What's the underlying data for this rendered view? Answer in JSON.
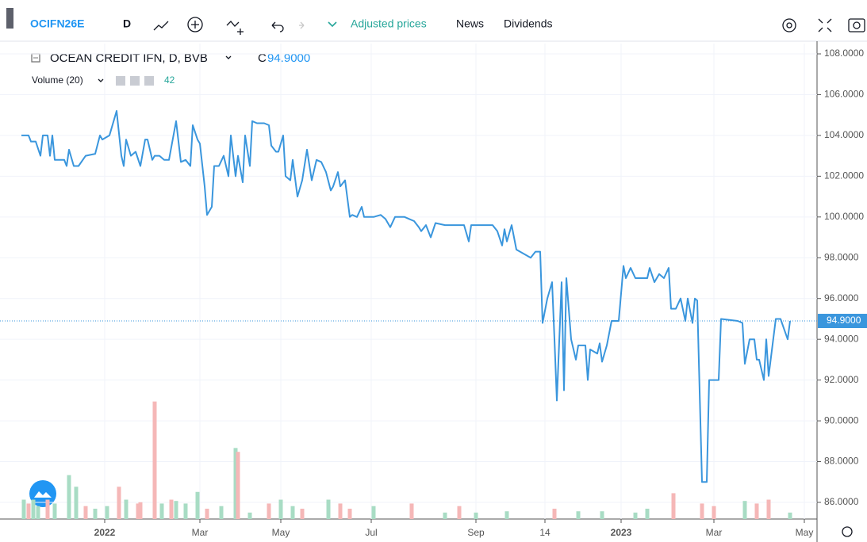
{
  "toolbar": {
    "symbol": "OCIFN26E",
    "interval": "D",
    "adjusted": "Adjusted prices",
    "news": "News",
    "dividends": "Dividends"
  },
  "chart_data": {
    "type": "line",
    "title": "OCEAN CREDIT IFN, D, BVB",
    "close_label": "C",
    "close_value": "94.9000",
    "volume_label": "Volume (20)",
    "volume_value": "42",
    "grid": true,
    "xlim": [
      0,
      334
    ],
    "xticks": [
      {
        "value": 35,
        "label": "2022"
      },
      {
        "value": 75,
        "label": "Mar"
      },
      {
        "value": 109,
        "label": "May"
      },
      {
        "value": 147,
        "label": "Jul"
      },
      {
        "value": 191,
        "label": "Sep"
      },
      {
        "value": 220,
        "label": "14"
      },
      {
        "value": 252,
        "label": "2023"
      },
      {
        "value": 291,
        "label": "Mar"
      },
      {
        "value": 329,
        "label": "May"
      }
    ],
    "ylim": [
      85.2,
      108.0
    ],
    "yticks": [
      {
        "value": 86,
        "label": "86.0000"
      },
      {
        "value": 88,
        "label": "88.0000"
      },
      {
        "value": 90,
        "label": "90.0000"
      },
      {
        "value": 92,
        "label": "92.0000"
      },
      {
        "value": 94,
        "label": "94.0000"
      },
      {
        "value": 96,
        "label": "96.0000"
      },
      {
        "value": 98,
        "label": "98.0000"
      },
      {
        "value": 100,
        "label": "100.0000"
      },
      {
        "value": 102,
        "label": "102.0000"
      },
      {
        "value": 104,
        "label": "104.0000"
      },
      {
        "value": 106,
        "label": "106.0000"
      },
      {
        "value": 108,
        "label": "108.0000"
      }
    ],
    "last_price": {
      "value": 94.9,
      "label": "94.9000"
    },
    "y2lim": [
      0,
      100
    ],
    "series": [
      {
        "name": "OCEAN CREDIT IFN, D, BVB",
        "color": "#3a96dd",
        "x": [
          0,
          3,
          4,
          6,
          8,
          9,
          11,
          12,
          13,
          14,
          18,
          19,
          20,
          22,
          24,
          27,
          31,
          33,
          34,
          37,
          39,
          40,
          42,
          43,
          44,
          46,
          48,
          50,
          52,
          53,
          55,
          56,
          58,
          60,
          62,
          65,
          67,
          69,
          71,
          72,
          74,
          75,
          77,
          78,
          80,
          81,
          83,
          85,
          87,
          88,
          90,
          91,
          93,
          94,
          96,
          97,
          99,
          102,
          104,
          105,
          107,
          108,
          110,
          111,
          113,
          114,
          116,
          118,
          120,
          122,
          124,
          126,
          128,
          130,
          131,
          133,
          134,
          136,
          138,
          139,
          141,
          143,
          144,
          148,
          151,
          153,
          155,
          157,
          161,
          163,
          165,
          167,
          168,
          170,
          172,
          174,
          178,
          181,
          186,
          188,
          189,
          198,
          200,
          202,
          203,
          204,
          206,
          208,
          211,
          214,
          216,
          218,
          219,
          221,
          223,
          224,
          225,
          227,
          228,
          229,
          231,
          233,
          234,
          237,
          238,
          239,
          242,
          243,
          244,
          246,
          248,
          251,
          253,
          254,
          256,
          258,
          263,
          264,
          266,
          268,
          270,
          272,
          273,
          275,
          277,
          279,
          280,
          282,
          283,
          284,
          286,
          288,
          289,
          293,
          294,
          301,
          303,
          304,
          306,
          308,
          309,
          310,
          312,
          313,
          314,
          317,
          319,
          322,
          323
        ],
        "values": [
          104.0,
          104.0,
          103.7,
          103.7,
          103.0,
          104.0,
          104.0,
          103.0,
          104.0,
          102.8,
          102.8,
          102.5,
          103.3,
          102.5,
          102.5,
          103.0,
          103.1,
          104.0,
          103.8,
          104.0,
          104.8,
          105.2,
          103.0,
          102.5,
          103.8,
          103.0,
          103.2,
          102.5,
          103.8,
          103.8,
          102.8,
          103.0,
          103.0,
          102.8,
          102.8,
          104.7,
          102.7,
          102.8,
          102.5,
          104.5,
          103.8,
          103.6,
          101.5,
          100.1,
          100.5,
          102.5,
          102.5,
          103.0,
          102.0,
          104.0,
          102.0,
          103.0,
          101.7,
          104.0,
          102.5,
          104.7,
          104.6,
          104.6,
          104.5,
          103.5,
          103.2,
          103.2,
          104.0,
          102.0,
          101.8,
          102.8,
          101.0,
          101.8,
          103.3,
          101.8,
          102.8,
          102.7,
          102.2,
          101.3,
          101.5,
          102.2,
          101.5,
          101.8,
          100.0,
          100.1,
          100.0,
          100.5,
          100.0,
          100.0,
          100.1,
          99.9,
          99.5,
          100.0,
          100.0,
          99.9,
          99.8,
          99.5,
          99.3,
          99.6,
          99.0,
          99.7,
          99.6,
          99.6,
          99.6,
          98.8,
          99.6,
          99.6,
          99.3,
          98.6,
          99.4,
          98.8,
          99.6,
          98.4,
          98.2,
          98.0,
          98.3,
          98.3,
          94.8,
          96.0,
          96.8,
          94.0,
          91.0,
          96.8,
          91.5,
          97.0,
          94.0,
          93.0,
          93.7,
          93.7,
          92.0,
          93.5,
          93.3,
          93.8,
          92.9,
          93.7,
          94.9,
          94.9,
          97.6,
          97.0,
          97.5,
          97.0,
          97.0,
          97.5,
          96.8,
          97.2,
          97.0,
          97.5,
          95.5,
          95.5,
          96.0,
          94.9,
          96.0,
          94.8,
          96.0,
          95.9,
          87.0,
          87.0,
          92.0,
          92.0,
          95.0,
          94.9,
          94.8,
          92.8,
          94.0,
          94.0,
          93.0,
          93.0,
          92.0,
          94.0,
          92.2,
          95.0,
          95.0,
          94.0,
          94.9
        ]
      },
      {
        "name": "Volume (20)",
        "type": "bar",
        "axis": "y2",
        "x": [
          1,
          3,
          5,
          7,
          11,
          14,
          20,
          23,
          27,
          31,
          36,
          41,
          44,
          49,
          50,
          56,
          59,
          63,
          65,
          69,
          74,
          78,
          84,
          90,
          91,
          96,
          104,
          109,
          114,
          118,
          129,
          134,
          138,
          148,
          164,
          178,
          184,
          191,
          204,
          224,
          234,
          244,
          258,
          263,
          274,
          286,
          291,
          304,
          309,
          314,
          323
        ],
        "values": [
          15,
          12,
          15,
          10,
          15,
          12,
          34,
          25,
          10,
          8,
          10,
          25,
          15,
          12,
          13,
          91,
          12,
          15,
          14,
          12,
          21,
          8,
          10,
          55,
          52,
          5,
          12,
          15,
          10,
          8,
          15,
          12,
          8,
          10,
          12,
          5,
          10,
          5,
          6,
          8,
          6,
          6,
          5,
          8,
          20,
          12,
          10,
          14,
          12,
          15,
          5
        ],
        "colors": [
          "#a8dcc4",
          "#f5b7b7",
          "#a8dcc4",
          "#a8dcc4",
          "#f5b7b7",
          "#a8dcc4",
          "#a8dcc4",
          "#a8dcc4",
          "#f5b7b7",
          "#a8dcc4",
          "#a8dcc4",
          "#f5b7b7",
          "#a8dcc4",
          "#f5b7b7",
          "#f5b7b7",
          "#f5b7b7",
          "#a8dcc4",
          "#f5b7b7",
          "#a8dcc4",
          "#a8dcc4",
          "#a8dcc4",
          "#f5b7b7",
          "#a8dcc4",
          "#a8dcc4",
          "#f5b7b7",
          "#a8dcc4",
          "#f5b7b7",
          "#a8dcc4",
          "#a8dcc4",
          "#f5b7b7",
          "#a8dcc4",
          "#f5b7b7",
          "#f5b7b7",
          "#a8dcc4",
          "#f5b7b7",
          "#a8dcc4",
          "#f5b7b7",
          "#a8dcc4",
          "#a8dcc4",
          "#f5b7b7",
          "#a8dcc4",
          "#a8dcc4",
          "#a8dcc4",
          "#a8dcc4",
          "#f5b7b7",
          "#f5b7b7",
          "#f5b7b7",
          "#a8dcc4",
          "#f5b7b7",
          "#f5b7b7",
          "#a8dcc4"
        ]
      }
    ]
  }
}
